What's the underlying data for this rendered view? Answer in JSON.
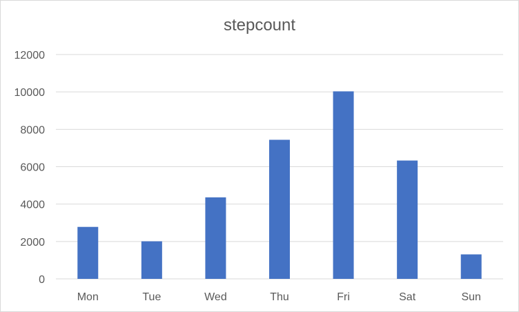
{
  "chart_data": {
    "type": "bar",
    "title": "stepcount",
    "categories": [
      "Mon",
      "Tue",
      "Wed",
      "Thu",
      "Fri",
      "Sat",
      "Sun"
    ],
    "values": [
      2780,
      2010,
      4360,
      7440,
      10030,
      6330,
      1310
    ],
    "xlabel": "",
    "ylabel": "",
    "ylim": [
      0,
      12000
    ],
    "yticks": [
      0,
      2000,
      4000,
      6000,
      8000,
      10000,
      12000
    ],
    "grid": true,
    "bar_color": "#4472C4",
    "gridline_color": "#d9d9d9"
  }
}
